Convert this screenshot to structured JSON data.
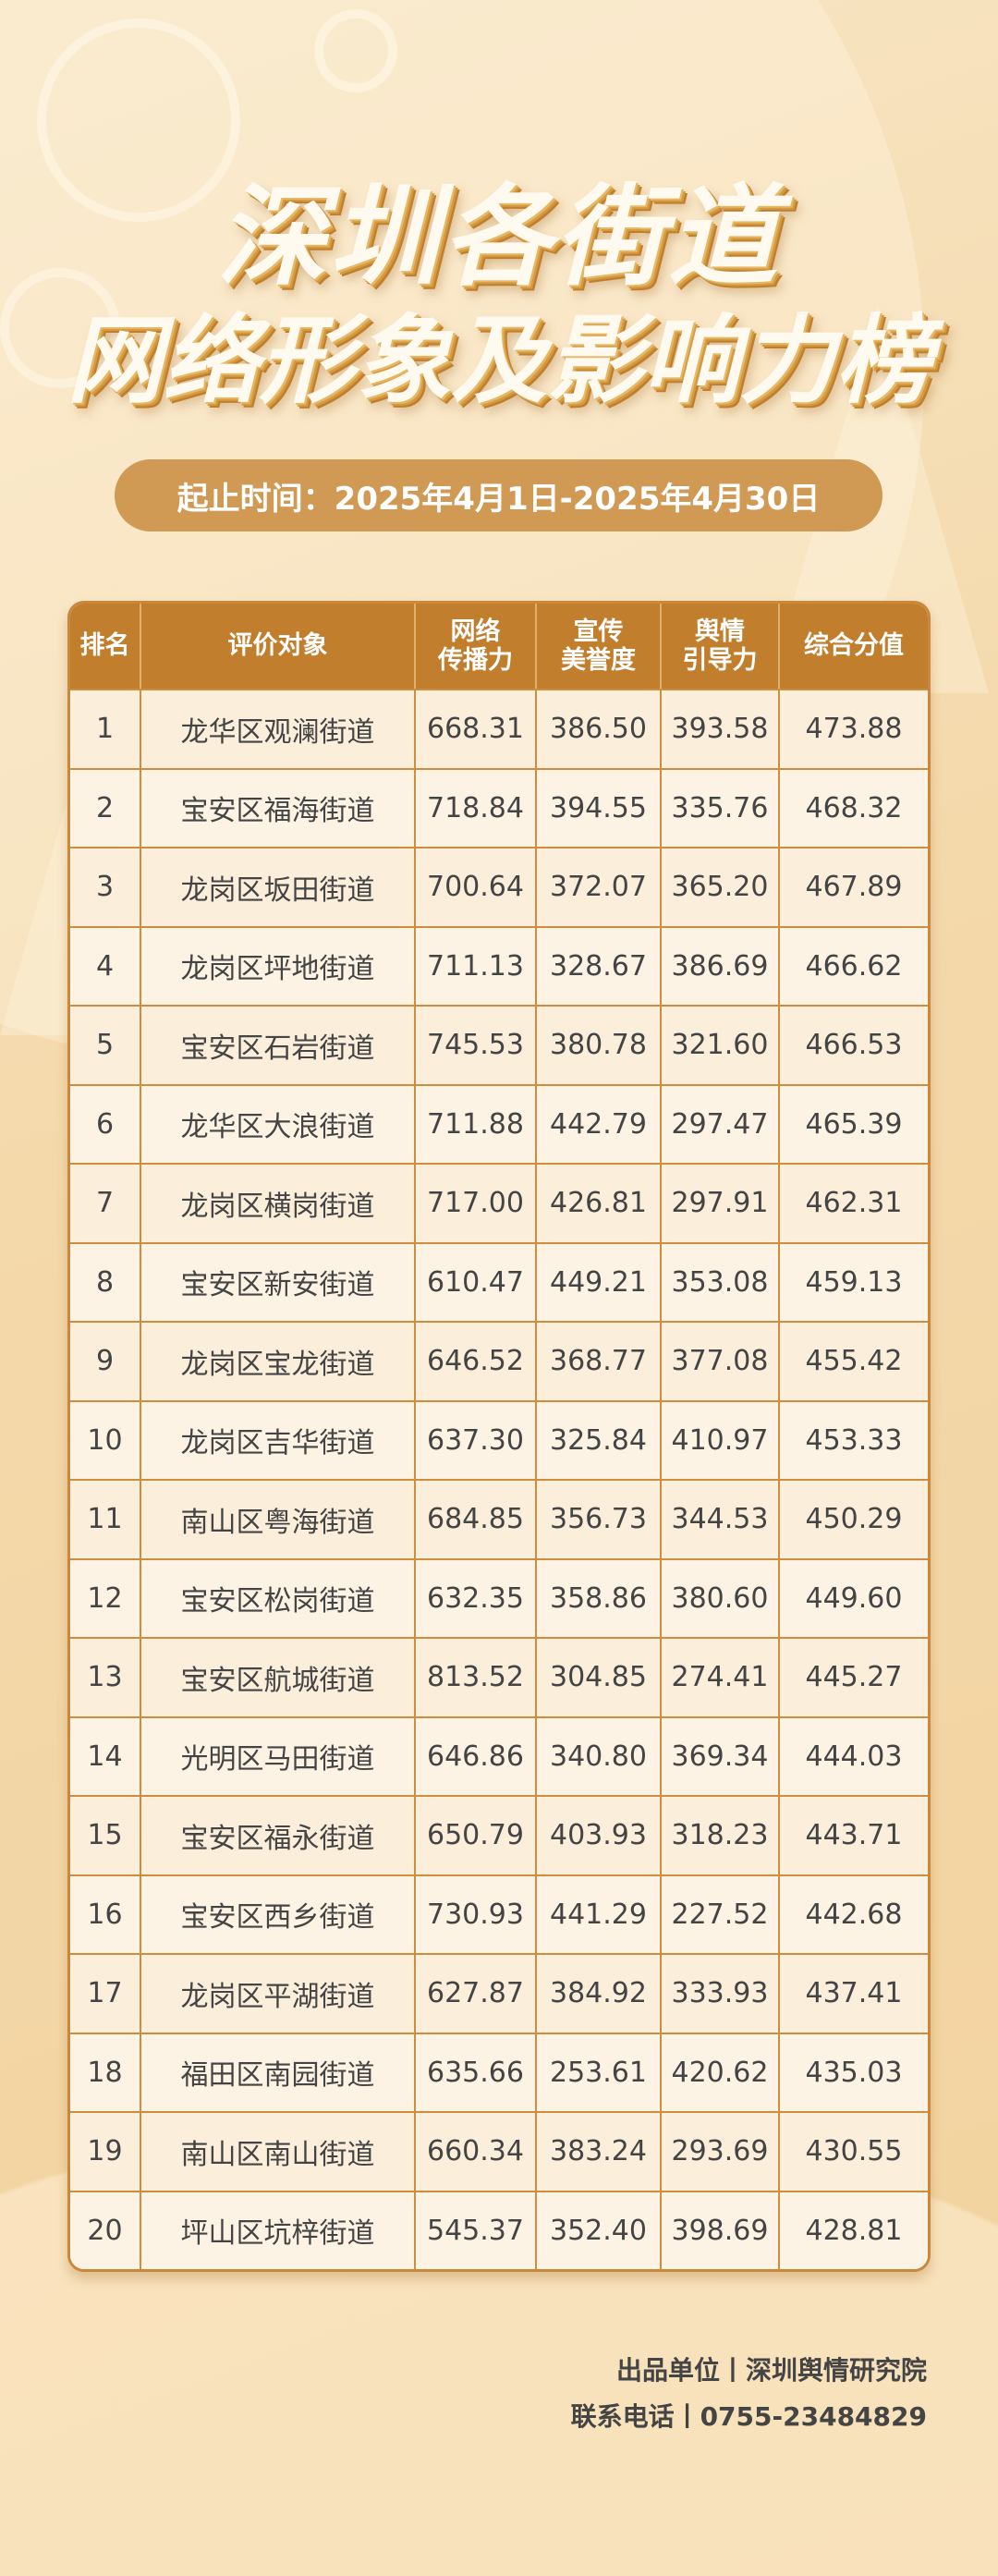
{
  "title": {
    "line1": "深圳各街道",
    "line2": "网络形象及影响力榜"
  },
  "period": "起止时间：2025年4月1日-2025年4月30日",
  "table": {
    "headers": [
      "排名",
      "评价对象",
      "网络\n传播力",
      "宣传\n美誉度",
      "舆情\n引导力",
      "综合分值"
    ],
    "rows": [
      [
        "1",
        "龙华区观澜街道",
        "668.31",
        "386.50",
        "393.58",
        "473.88"
      ],
      [
        "2",
        "宝安区福海街道",
        "718.84",
        "394.55",
        "335.76",
        "468.32"
      ],
      [
        "3",
        "龙岗区坂田街道",
        "700.64",
        "372.07",
        "365.20",
        "467.89"
      ],
      [
        "4",
        "龙岗区坪地街道",
        "711.13",
        "328.67",
        "386.69",
        "466.62"
      ],
      [
        "5",
        "宝安区石岩街道",
        "745.53",
        "380.78",
        "321.60",
        "466.53"
      ],
      [
        "6",
        "龙华区大浪街道",
        "711.88",
        "442.79",
        "297.47",
        "465.39"
      ],
      [
        "7",
        "龙岗区横岗街道",
        "717.00",
        "426.81",
        "297.91",
        "462.31"
      ],
      [
        "8",
        "宝安区新安街道",
        "610.47",
        "449.21",
        "353.08",
        "459.13"
      ],
      [
        "9",
        "龙岗区宝龙街道",
        "646.52",
        "368.77",
        "377.08",
        "455.42"
      ],
      [
        "10",
        "龙岗区吉华街道",
        "637.30",
        "325.84",
        "410.97",
        "453.33"
      ],
      [
        "11",
        "南山区粤海街道",
        "684.85",
        "356.73",
        "344.53",
        "450.29"
      ],
      [
        "12",
        "宝安区松岗街道",
        "632.35",
        "358.86",
        "380.60",
        "449.60"
      ],
      [
        "13",
        "宝安区航城街道",
        "813.52",
        "304.85",
        "274.41",
        "445.27"
      ],
      [
        "14",
        "光明区马田街道",
        "646.86",
        "340.80",
        "369.34",
        "444.03"
      ],
      [
        "15",
        "宝安区福永街道",
        "650.79",
        "403.93",
        "318.23",
        "443.71"
      ],
      [
        "16",
        "宝安区西乡街道",
        "730.93",
        "441.29",
        "227.52",
        "442.68"
      ],
      [
        "17",
        "龙岗区平湖街道",
        "627.87",
        "384.92",
        "333.93",
        "437.41"
      ],
      [
        "18",
        "福田区南园街道",
        "635.66",
        "253.61",
        "420.62",
        "435.03"
      ],
      [
        "19",
        "南山区南山街道",
        "660.34",
        "383.24",
        "293.69",
        "430.55"
      ],
      [
        "20",
        "坪山区坑梓街道",
        "545.37",
        "352.40",
        "398.69",
        "428.81"
      ]
    ]
  },
  "footer": {
    "producer": "出品单位丨深圳舆情研究院",
    "contact": "联系电话丨0755-23484829"
  },
  "colors": {
    "header": "#c17f2e",
    "pill": "#d09a55",
    "border": "#cf8d3e",
    "background": "#f5dcae"
  }
}
